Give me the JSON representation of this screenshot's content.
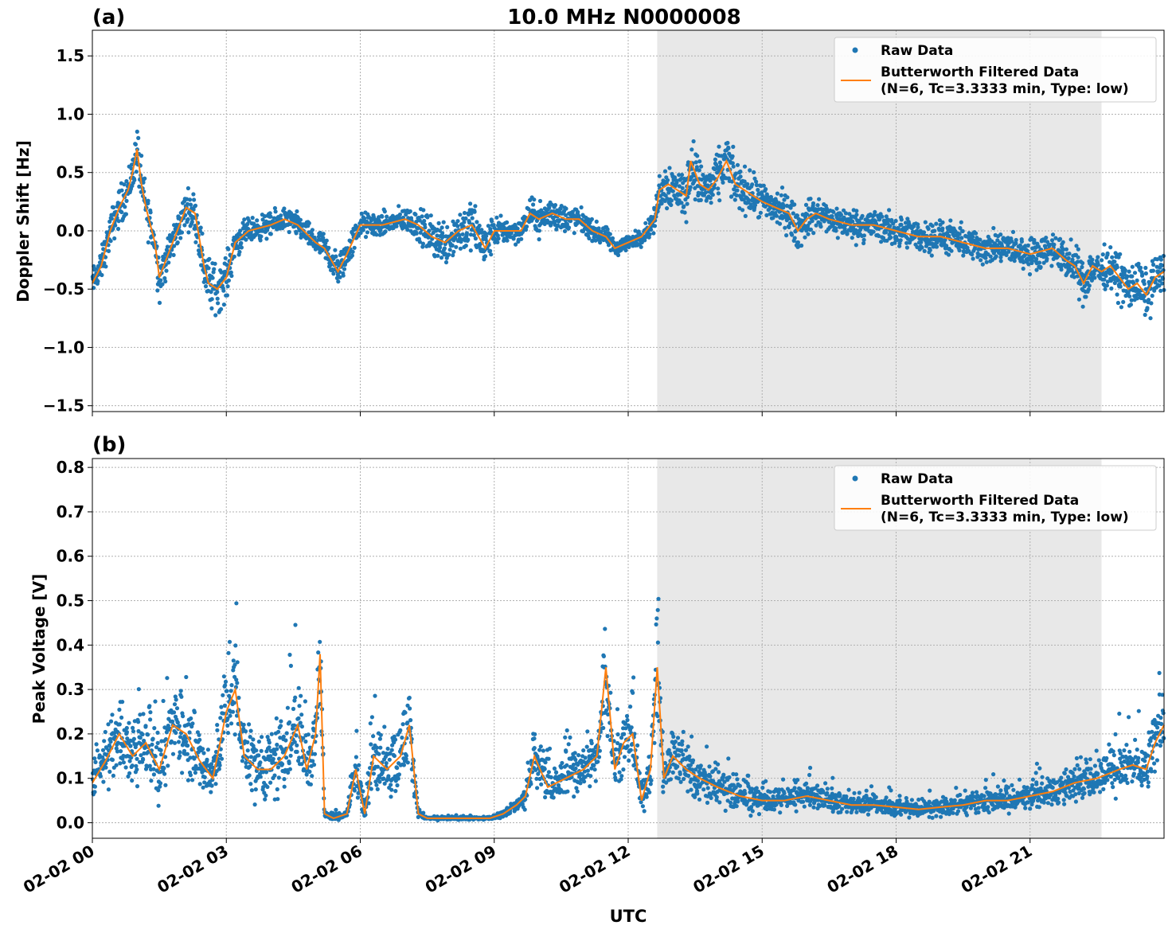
{
  "figure": {
    "title": "10.0 MHz N0000008",
    "xlabel": "UTC",
    "x_ticks": [
      "02-02 00",
      "02-02 03",
      "02-02 06",
      "02-02 09",
      "02-02 12",
      "02-02 15",
      "02-02 18",
      "02-02 21"
    ],
    "colors": {
      "raw": "#1f77b4",
      "filtered": "#ff7f0e",
      "shade": "#e8e8e8"
    }
  },
  "chart_data": [
    {
      "type": "scatter",
      "panel_label": "(a)",
      "ylabel": "Doppler Shift [Hz]",
      "xlim_hours": [
        0,
        24
      ],
      "ylim": [
        -1.55,
        1.72
      ],
      "y_ticks": [
        1.5,
        1.0,
        0.5,
        0.0,
        -0.5,
        -1.0,
        -1.5
      ],
      "y_tick_labels": [
        "1.5",
        "1.0",
        "0.5",
        "0.0",
        "−0.5",
        "−1.0",
        "−1.5"
      ],
      "shaded_region_hours": [
        12.65,
        22.6
      ],
      "legend": {
        "position": "top-right",
        "raw_label": "Raw Data",
        "filtered_label_line1": "Butterworth Filtered Data",
        "filtered_label_line2": "(N=6, Tc=3.3333 min, Type: low)"
      },
      "series": [
        {
          "name": "Butterworth Filtered Data",
          "x": [
            0,
            0.2,
            0.4,
            0.6,
            0.8,
            0.9,
            1.0,
            1.1,
            1.2,
            1.4,
            1.5,
            1.7,
            1.9,
            2.1,
            2.3,
            2.5,
            2.6,
            2.8,
            3.0,
            3.2,
            3.5,
            4.0,
            4.3,
            4.6,
            5.0,
            5.2,
            5.5,
            5.7,
            6.0,
            6.5,
            7.0,
            7.3,
            7.6,
            7.9,
            8.2,
            8.5,
            8.8,
            9.0,
            9.3,
            9.6,
            9.8,
            10.0,
            10.3,
            10.6,
            10.9,
            11.2,
            11.5,
            11.7,
            12.0,
            12.3,
            12.6,
            12.7,
            12.9,
            13.1,
            13.3,
            13.4,
            13.6,
            13.8,
            14.0,
            14.2,
            14.4,
            14.6,
            14.8,
            15.0,
            15.3,
            15.6,
            15.8,
            16.0,
            16.2,
            16.5,
            17.0,
            17.5,
            18.0,
            18.5,
            19.0,
            19.5,
            20.0,
            20.5,
            21.0,
            21.5,
            21.8,
            22.0,
            22.2,
            22.4,
            22.6,
            22.8,
            23.0,
            23.2,
            23.4,
            23.6,
            23.8,
            24.0
          ],
          "y": [
            -0.45,
            -0.3,
            0.0,
            0.2,
            0.35,
            0.5,
            0.7,
            0.4,
            0.2,
            -0.1,
            -0.4,
            -0.2,
            0.0,
            0.2,
            0.15,
            -0.3,
            -0.45,
            -0.5,
            -0.4,
            -0.1,
            0.0,
            0.05,
            0.1,
            0.05,
            -0.1,
            -0.15,
            -0.35,
            -0.2,
            0.05,
            0.05,
            0.1,
            0.05,
            -0.05,
            -0.1,
            0.0,
            0.05,
            -0.15,
            0.0,
            0.0,
            0.0,
            0.15,
            0.1,
            0.15,
            0.1,
            0.1,
            0.0,
            -0.05,
            -0.15,
            -0.1,
            -0.05,
            0.1,
            0.35,
            0.4,
            0.35,
            0.3,
            0.6,
            0.4,
            0.35,
            0.45,
            0.6,
            0.4,
            0.35,
            0.3,
            0.25,
            0.2,
            0.15,
            0.0,
            0.1,
            0.15,
            0.1,
            0.05,
            0.05,
            0.0,
            -0.05,
            -0.05,
            -0.1,
            -0.15,
            -0.15,
            -0.2,
            -0.15,
            -0.25,
            -0.3,
            -0.45,
            -0.3,
            -0.35,
            -0.3,
            -0.4,
            -0.5,
            -0.45,
            -0.55,
            -0.4,
            -0.35
          ]
        },
        {
          "name": "Raw Data",
          "spread_hz": [
            0.18,
            0.2,
            0.22,
            0.24,
            0.26,
            0.28,
            0.3,
            0.3,
            0.28,
            0.25,
            0.3,
            0.22,
            0.22,
            0.22,
            0.26,
            0.3,
            0.34,
            0.3,
            0.28,
            0.2,
            0.15,
            0.15,
            0.15,
            0.15,
            0.15,
            0.18,
            0.22,
            0.2,
            0.15,
            0.15,
            0.15,
            0.2,
            0.25,
            0.28,
            0.3,
            0.3,
            0.28,
            0.2,
            0.15,
            0.15,
            0.18,
            0.2,
            0.2,
            0.18,
            0.15,
            0.12,
            0.12,
            0.1,
            0.1,
            0.1,
            0.15,
            0.25,
            0.3,
            0.3,
            0.3,
            0.35,
            0.3,
            0.3,
            0.3,
            0.35,
            0.3,
            0.28,
            0.25,
            0.25,
            0.25,
            0.25,
            0.25,
            0.22,
            0.22,
            0.2,
            0.2,
            0.2,
            0.2,
            0.2,
            0.2,
            0.2,
            0.2,
            0.2,
            0.2,
            0.2,
            0.22,
            0.25,
            0.28,
            0.25,
            0.25,
            0.25,
            0.28,
            0.3,
            0.3,
            0.3,
            0.28,
            0.25
          ]
        }
      ]
    },
    {
      "type": "scatter",
      "panel_label": "(b)",
      "ylabel": "Peak Voltage [V]",
      "xlim_hours": [
        0,
        24
      ],
      "ylim": [
        -0.035,
        0.82
      ],
      "y_ticks": [
        0.8,
        0.7,
        0.6,
        0.5,
        0.4,
        0.3,
        0.2,
        0.1,
        0.0
      ],
      "y_tick_labels": [
        "0.8",
        "0.7",
        "0.6",
        "0.5",
        "0.4",
        "0.3",
        "0.2",
        "0.1",
        "0.0"
      ],
      "shaded_region_hours": [
        12.65,
        22.6
      ],
      "legend": {
        "position": "top-right",
        "raw_label": "Raw Data",
        "filtered_label_line1": "Butterworth Filtered Data",
        "filtered_label_line2": "(N=6, Tc=3.3333 min, Type: low)"
      },
      "series": [
        {
          "name": "Butterworth Filtered Data",
          "x": [
            0,
            0.3,
            0.6,
            0.9,
            1.2,
            1.5,
            1.8,
            2.1,
            2.4,
            2.7,
            3.0,
            3.2,
            3.4,
            3.7,
            4.0,
            4.3,
            4.6,
            4.8,
            5.0,
            5.1,
            5.2,
            5.4,
            5.7,
            5.9,
            6.1,
            6.3,
            6.6,
            6.9,
            7.1,
            7.3,
            7.5,
            7.8,
            8.2,
            8.6,
            8.9,
            9.2,
            9.5,
            9.7,
            9.9,
            10.2,
            10.6,
            11.0,
            11.3,
            11.5,
            11.7,
            11.9,
            12.1,
            12.3,
            12.5,
            12.65,
            12.8,
            13.0,
            13.3,
            13.6,
            14.0,
            14.5,
            15.0,
            15.5,
            16.0,
            16.5,
            17.0,
            17.5,
            18.0,
            18.5,
            19.0,
            19.5,
            20.0,
            20.5,
            21.0,
            21.5,
            22.0,
            22.5,
            23.0,
            23.3,
            23.6,
            23.8,
            24.0
          ],
          "y": [
            0.09,
            0.14,
            0.2,
            0.15,
            0.18,
            0.12,
            0.22,
            0.2,
            0.14,
            0.1,
            0.25,
            0.3,
            0.15,
            0.12,
            0.12,
            0.15,
            0.22,
            0.12,
            0.2,
            0.38,
            0.02,
            0.01,
            0.02,
            0.12,
            0.02,
            0.15,
            0.12,
            0.15,
            0.22,
            0.02,
            0.01,
            0.01,
            0.01,
            0.01,
            0.01,
            0.02,
            0.04,
            0.06,
            0.15,
            0.08,
            0.1,
            0.12,
            0.15,
            0.35,
            0.12,
            0.18,
            0.2,
            0.05,
            0.12,
            0.35,
            0.1,
            0.15,
            0.12,
            0.1,
            0.08,
            0.06,
            0.05,
            0.05,
            0.06,
            0.05,
            0.04,
            0.04,
            0.035,
            0.03,
            0.035,
            0.04,
            0.05,
            0.05,
            0.06,
            0.07,
            0.09,
            0.1,
            0.12,
            0.13,
            0.12,
            0.18,
            0.22
          ]
        },
        {
          "name": "Raw Data",
          "spread_v": [
            0.06,
            0.08,
            0.1,
            0.1,
            0.1,
            0.1,
            0.12,
            0.12,
            0.1,
            0.08,
            0.14,
            0.16,
            0.12,
            0.1,
            0.12,
            0.12,
            0.14,
            0.1,
            0.14,
            0.16,
            0.01,
            0.01,
            0.01,
            0.08,
            0.03,
            0.1,
            0.1,
            0.12,
            0.14,
            0.01,
            0.005,
            0.005,
            0.005,
            0.005,
            0.005,
            0.01,
            0.02,
            0.04,
            0.1,
            0.06,
            0.07,
            0.08,
            0.1,
            0.15,
            0.08,
            0.1,
            0.12,
            0.05,
            0.08,
            0.18,
            0.08,
            0.1,
            0.08,
            0.07,
            0.06,
            0.05,
            0.04,
            0.04,
            0.04,
            0.035,
            0.03,
            0.03,
            0.03,
            0.025,
            0.03,
            0.03,
            0.035,
            0.04,
            0.04,
            0.05,
            0.05,
            0.06,
            0.07,
            0.08,
            0.08,
            0.1,
            0.1
          ]
        }
      ]
    }
  ]
}
